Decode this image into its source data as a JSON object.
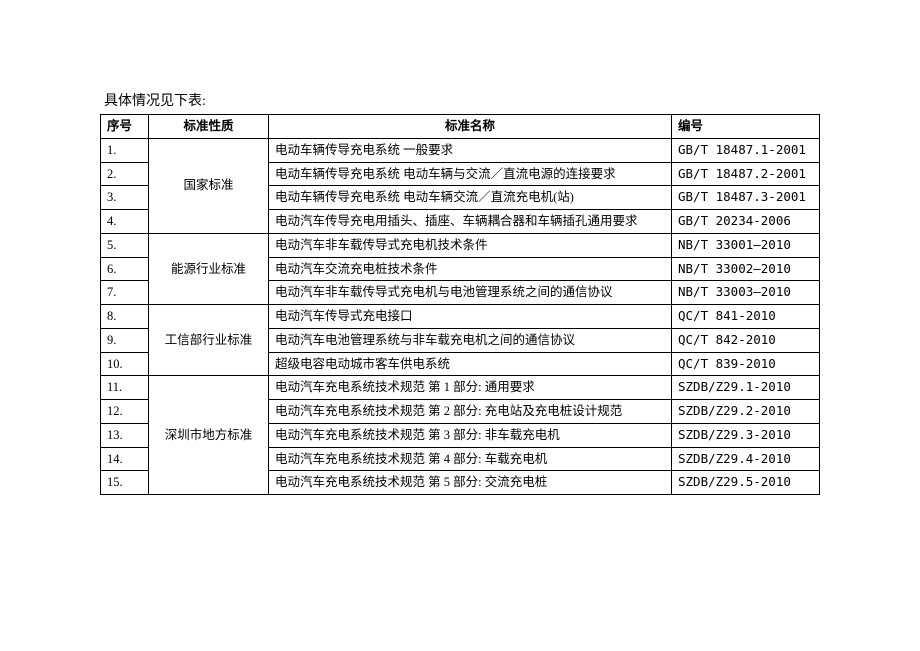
{
  "caption": "具体情况见下表:",
  "headers": {
    "seq": "序号",
    "type": "标准性质",
    "name": "标准名称",
    "code": "编号"
  },
  "groups": [
    {
      "type": "国家标准",
      "rows": [
        {
          "seq": "1.",
          "name": "电动车辆传导充电系统 一般要求",
          "code": "GB/T 18487.1-2001"
        },
        {
          "seq": "2.",
          "name": "电动车辆传导充电系统 电动车辆与交流／直流电源的连接要求",
          "code": "GB/T 18487.2-2001"
        },
        {
          "seq": "3.",
          "name": "电动车辆传导充电系统 电动车辆交流／直流充电机(站)",
          "code": "GB/T 18487.3-2001"
        },
        {
          "seq": "4.",
          "name": "电动汽车传导充电用插头、插座、车辆耦合器和车辆插孔通用要求",
          "code": "GB/T 20234-2006"
        }
      ]
    },
    {
      "type": "能源行业标准",
      "rows": [
        {
          "seq": "5.",
          "name": "电动汽车非车载传导式充电机技术条件",
          "code": "NB/T 33001—2010"
        },
        {
          "seq": "6.",
          "name": "电动汽车交流充电桩技术条件",
          "code": "NB/T 33002—2010"
        },
        {
          "seq": "7.",
          "name": "电动汽车非车载传导式充电机与电池管理系统之间的通信协议",
          "code": "NB/T 33003—2010"
        }
      ]
    },
    {
      "type": "工信部行业标准",
      "rows": [
        {
          "seq": "8.",
          "name": "电动汽车传导式充电接口",
          "code": "QC/T 841-2010"
        },
        {
          "seq": "9.",
          "name": "电动汽车电池管理系统与非车载充电机之间的通信协议",
          "code": "QC/T 842-2010"
        },
        {
          "seq": "10.",
          "name": "超级电容电动城市客车供电系统",
          "code": "QC/T 839-2010"
        }
      ]
    },
    {
      "type": "深圳市地方标准",
      "rows": [
        {
          "seq": "11.",
          "name": "电动汽车充电系统技术规范 第 1 部分: 通用要求",
          "code": "SZDB/Z29.1-2010"
        },
        {
          "seq": "12.",
          "name": "电动汽车充电系统技术规范 第 2 部分: 充电站及充电桩设计规范",
          "code": "SZDB/Z29.2-2010"
        },
        {
          "seq": "13.",
          "name": "电动汽车充电系统技术规范 第 3 部分: 非车载充电机",
          "code": "SZDB/Z29.3-2010"
        },
        {
          "seq": "14.",
          "name": "电动汽车充电系统技术规范 第 4 部分: 车载充电机",
          "code": "SZDB/Z29.4-2010"
        },
        {
          "seq": "15.",
          "name": "电动汽车充电系统技术规范 第 5 部分: 交流充电桩",
          "code": "SZDB/Z29.5-2010"
        }
      ]
    }
  ],
  "style": {
    "font_family": "SimSun",
    "font_size_body": 12.5,
    "font_size_caption": 14,
    "border_color": "#000000",
    "text_color": "#000000",
    "background_color": "#ffffff"
  }
}
